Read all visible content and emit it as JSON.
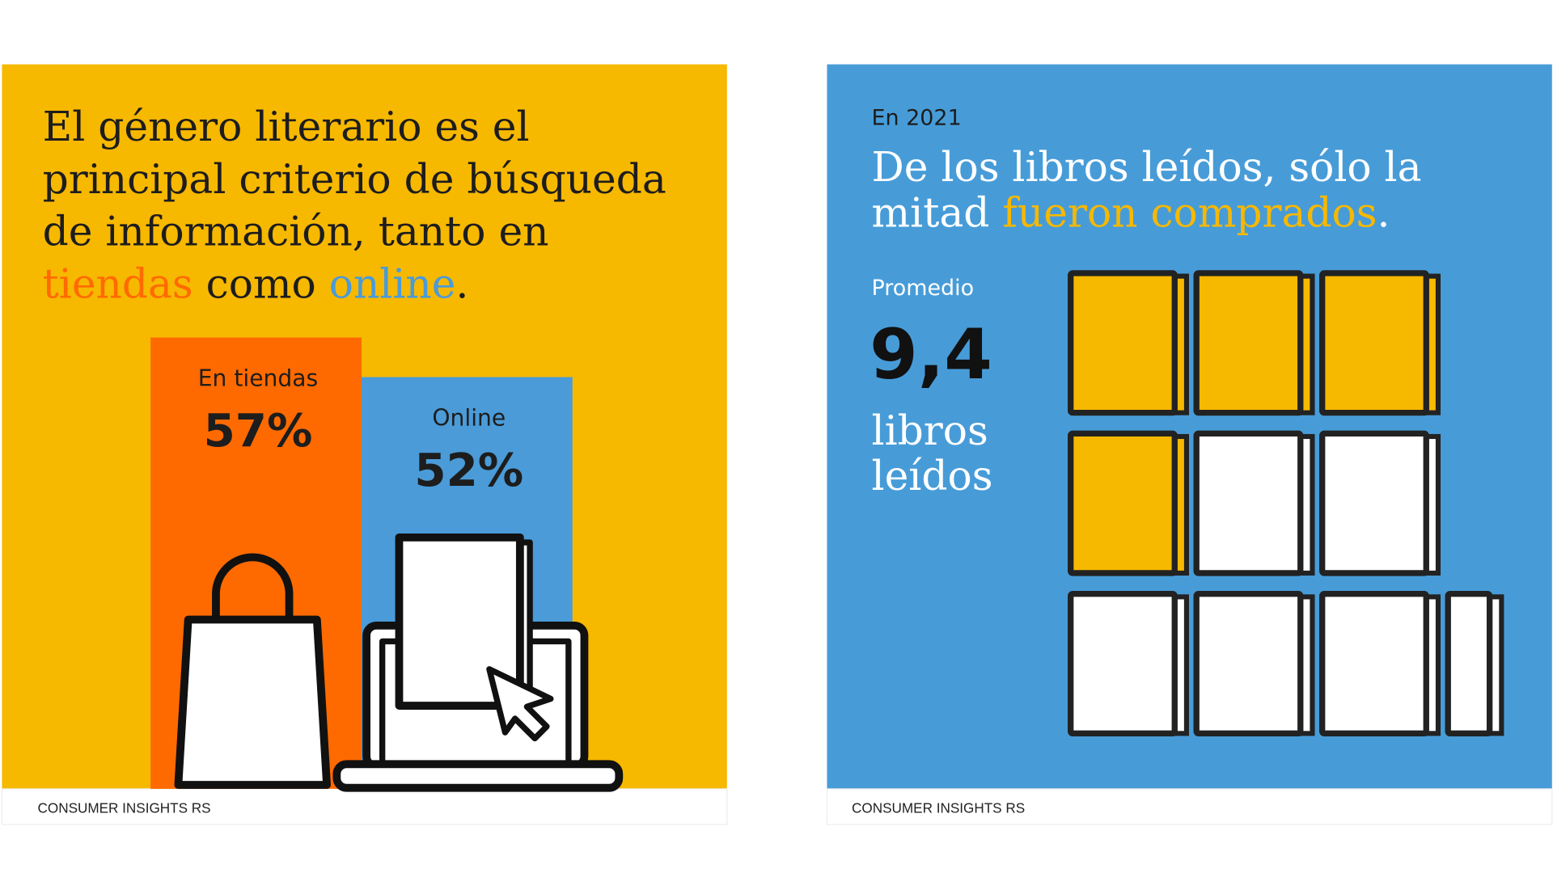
{
  "chart_data": [
    {
      "type": "bar",
      "title_lines": [
        [
          {
            "text": "El género literario es el"
          }
        ],
        [
          {
            "text": "principal criterio de búsqueda"
          }
        ],
        [
          {
            "text": "de información, tanto en"
          }
        ],
        [
          {
            "text": "tiendas",
            "color": "#ff6a00"
          },
          {
            "text": " como "
          },
          {
            "text": "online",
            "color": "#4a9bd8"
          },
          {
            "text": "."
          }
        ]
      ],
      "categories": [
        "En tiendas",
        "Online"
      ],
      "values": [
        57,
        52
      ],
      "value_labels": [
        "57%",
        "52%"
      ],
      "colors": [
        "#ff6a00",
        "#4a9bd8"
      ],
      "background": "#f7b800",
      "source": "CONSUMER INSIGHTS RS"
    },
    {
      "type": "pictograph",
      "subtitle": "En 2021",
      "title_lines": [
        [
          {
            "text": "De los libros leídos, sólo la"
          }
        ],
        [
          {
            "text": "mitad "
          },
          {
            "text": "fueron comprados",
            "color": "#f7b800"
          },
          {
            "text": "."
          }
        ]
      ],
      "value_caption": "Promedio",
      "value": 9.4,
      "value_label": "9,4",
      "unit_lines": [
        "libros",
        "leídos"
      ],
      "highlighted": 4,
      "highlight_color": "#f7b800",
      "background": "#479cd8",
      "source": "CONSUMER INSIGHTS RS"
    }
  ]
}
